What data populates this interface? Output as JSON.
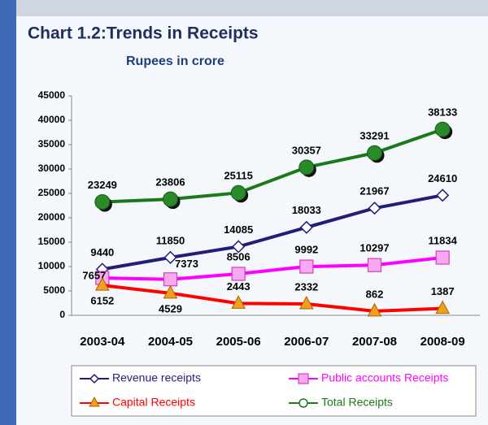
{
  "chart_data": {
    "type": "line",
    "title": "Chart 1.2:Trends in Receipts",
    "subtitle": "Rupees in crore",
    "categories": [
      "2003-04",
      "2004-05",
      "2005-06",
      "2006-07",
      "2007-08",
      "2008-09"
    ],
    "series": [
      {
        "name": "Revenue receipts",
        "color": "#1f1f7a",
        "marker": "diamond",
        "values": [
          9440,
          11850,
          14085,
          18033,
          21967,
          24610
        ]
      },
      {
        "name": "Public accounts Receipts",
        "color": "#ff00ff",
        "marker": "square",
        "values": [
          7657,
          7373,
          8506,
          9992,
          10297,
          11834
        ]
      },
      {
        "name": "Capital Receipts",
        "color": "#ff0000",
        "marker": "triangle",
        "values": [
          6152,
          4529,
          2443,
          2332,
          862,
          1387
        ]
      },
      {
        "name": "Total Receipts",
        "color": "#1a7a1a",
        "marker": "circle",
        "values": [
          23249,
          23806,
          25115,
          30357,
          33291,
          38133
        ]
      }
    ],
    "ylim": [
      0,
      45000
    ],
    "yticks": [
      0,
      5000,
      10000,
      15000,
      20000,
      25000,
      30000,
      35000,
      40000,
      45000
    ],
    "grid": false,
    "legend": "bottom"
  }
}
